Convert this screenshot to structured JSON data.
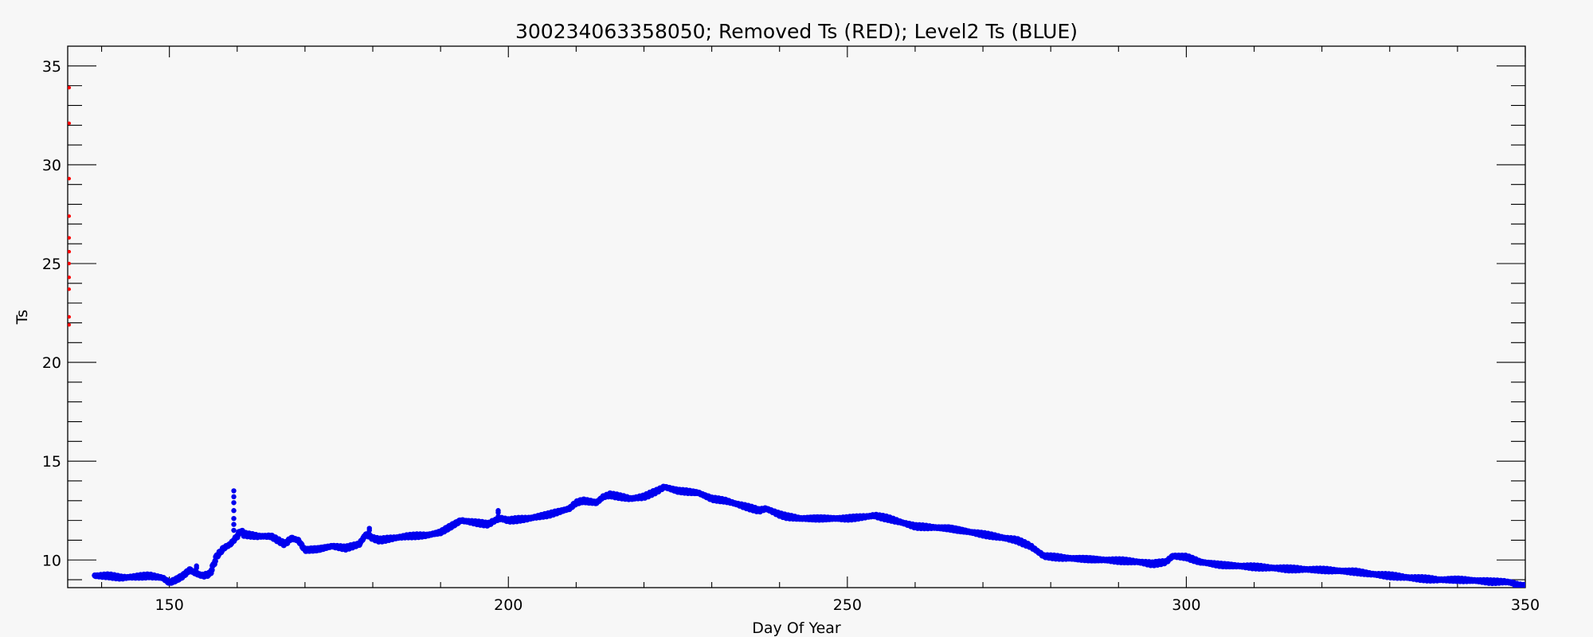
{
  "chart_data": {
    "type": "scatter",
    "title": "300234063358050; Removed Ts (RED); Level2 Ts (BLUE)",
    "xlabel": "Day Of Year",
    "ylabel": "Ts",
    "xlim": [
      135,
      350
    ],
    "ylim": [
      8.6,
      36
    ],
    "x_ticks": [
      150,
      200,
      250,
      300,
      350
    ],
    "y_ticks": [
      10,
      15,
      20,
      25,
      30,
      35
    ],
    "grid": false,
    "legend": "none",
    "series": [
      {
        "color": "#ff0000",
        "marker": "dot",
        "x": [
          135.1,
          135.1,
          135.1,
          135.1,
          135.1,
          135.1,
          135.1,
          135.1,
          135.1,
          135.1,
          135.1
        ],
        "y": [
          33.9,
          32.1,
          29.3,
          27.4,
          26.3,
          25.6,
          25.0,
          24.3,
          23.7,
          22.3,
          21.9
        ]
      },
      {
        "color": "#0000ee",
        "marker": "dot",
        "x": [
          139,
          141,
          143,
          145,
          147,
          148,
          149,
          150,
          151,
          152,
          153,
          154,
          155,
          156,
          157,
          158,
          159,
          159.5,
          160,
          160.5,
          161,
          163,
          165,
          166,
          167,
          168,
          169,
          170,
          172,
          174,
          176,
          178,
          179,
          180,
          181,
          183,
          185,
          188,
          190,
          192,
          193,
          195,
          197,
          198,
          199,
          200,
          203,
          206,
          209,
          210,
          211,
          213,
          214,
          215,
          218,
          220,
          222,
          223,
          225,
          228,
          230,
          232,
          235,
          237,
          238,
          240,
          241,
          243,
          246,
          250,
          253,
          254,
          256,
          258,
          260,
          265,
          270,
          275,
          277,
          279,
          282,
          285,
          288,
          291,
          293,
          295,
          297,
          298,
          300,
          302,
          305,
          310,
          315,
          320,
          325,
          327,
          330,
          333,
          337,
          340,
          343,
          345,
          347,
          348,
          349,
          350
        ],
        "y": [
          9.2,
          9.2,
          9.1,
          9.15,
          9.2,
          9.15,
          9.1,
          8.85,
          9.0,
          9.2,
          9.5,
          9.3,
          9.2,
          9.3,
          10.2,
          10.6,
          10.8,
          11.0,
          11.2,
          11.5,
          11.3,
          11.2,
          11.2,
          11.0,
          10.8,
          11.1,
          11.0,
          10.5,
          10.55,
          10.7,
          10.6,
          10.8,
          11.3,
          11.1,
          11.0,
          11.1,
          11.2,
          11.25,
          11.4,
          11.8,
          12.0,
          11.9,
          11.8,
          12.0,
          12.1,
          12.0,
          12.1,
          12.3,
          12.6,
          12.9,
          13.0,
          12.9,
          13.2,
          13.3,
          13.1,
          13.2,
          13.5,
          13.7,
          13.5,
          13.4,
          13.1,
          13.0,
          12.7,
          12.5,
          12.6,
          12.3,
          12.2,
          12.1,
          12.1,
          12.1,
          12.2,
          12.25,
          12.1,
          11.9,
          11.7,
          11.6,
          11.3,
          11.0,
          10.7,
          10.2,
          10.1,
          10.05,
          10.0,
          9.95,
          9.9,
          9.8,
          9.9,
          10.2,
          10.15,
          9.9,
          9.75,
          9.65,
          9.55,
          9.5,
          9.4,
          9.3,
          9.2,
          9.1,
          9.0,
          9.0,
          8.95,
          8.9,
          8.9,
          8.85,
          8.7,
          8.65
        ],
        "spikes": [
          {
            "x": 159.5,
            "y": [
              11.5,
              11.8,
              12.1,
              12.5,
              12.9,
              13.2,
              13.5
            ]
          },
          {
            "x": 154,
            "y": [
              9.4,
              9.6,
              9.7
            ]
          },
          {
            "x": 198.5,
            "y": [
              12.2,
              12.4,
              12.5
            ]
          },
          {
            "x": 179.5,
            "y": [
              11.3,
              11.5,
              11.6
            ]
          }
        ]
      }
    ]
  }
}
